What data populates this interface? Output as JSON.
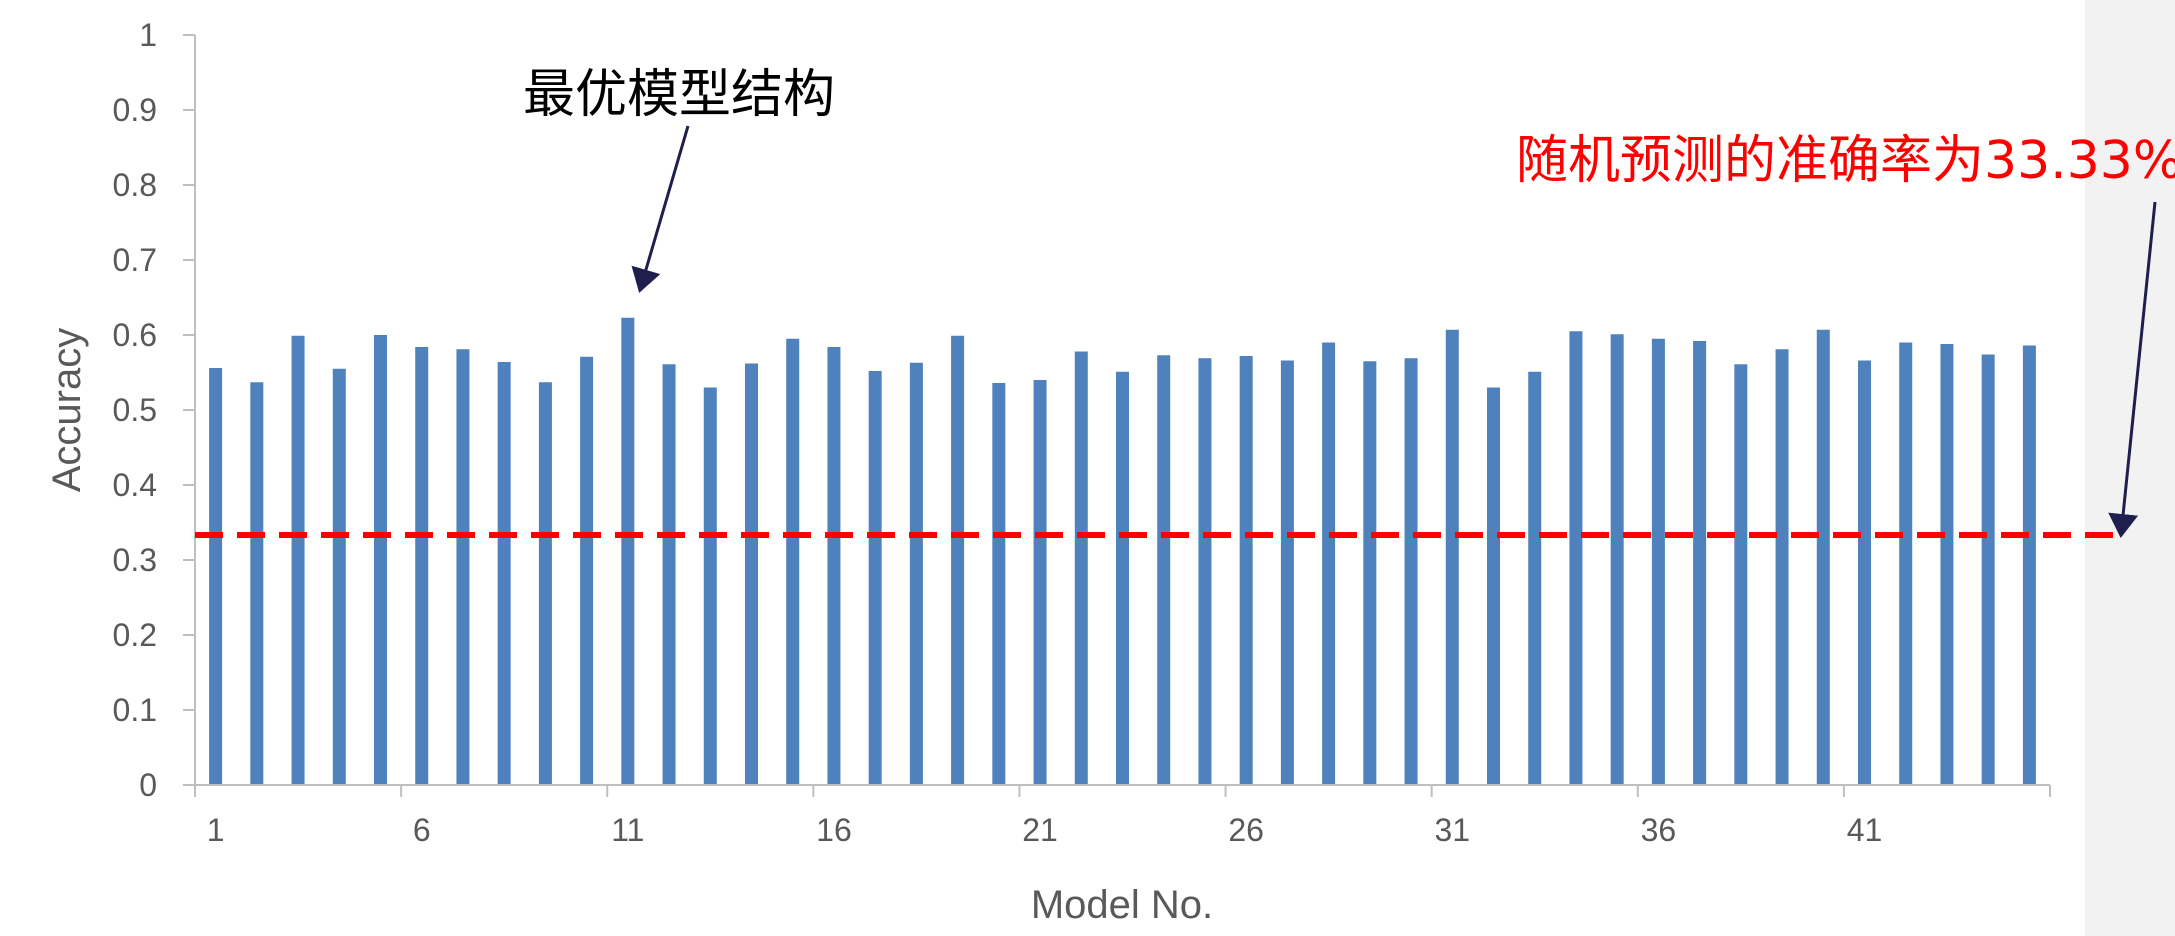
{
  "chart_data": {
    "type": "bar",
    "xlabel": "Model No.",
    "ylabel": "Accuracy",
    "ylim": [
      0,
      1
    ],
    "yticks": [
      0,
      0.1,
      0.2,
      0.3,
      0.4,
      0.5,
      0.6,
      0.7,
      0.8,
      0.9,
      1
    ],
    "ytick_labels": [
      "0",
      "0.1",
      "0.2",
      "0.3",
      "0.4",
      "0.5",
      "0.6",
      "0.7",
      "0.8",
      "0.9",
      "1"
    ],
    "xtick_labels": [
      "1",
      "6",
      "11",
      "16",
      "21",
      "26",
      "31",
      "36",
      "41"
    ],
    "categories": [
      1,
      2,
      3,
      4,
      5,
      6,
      7,
      8,
      9,
      10,
      11,
      12,
      13,
      14,
      15,
      16,
      17,
      18,
      19,
      20,
      21,
      22,
      23,
      24,
      25,
      26,
      27,
      28,
      29,
      30,
      31,
      32,
      33,
      34,
      35,
      36,
      37,
      38,
      39,
      40,
      41,
      42,
      43,
      44,
      45
    ],
    "values": [
      0.556,
      0.537,
      0.599,
      0.555,
      0.6,
      0.584,
      0.581,
      0.564,
      0.537,
      0.571,
      0.623,
      0.561,
      0.53,
      0.562,
      0.595,
      0.584,
      0.552,
      0.563,
      0.599,
      0.536,
      0.54,
      0.578,
      0.551,
      0.573,
      0.569,
      0.572,
      0.566,
      0.59,
      0.565,
      0.569,
      0.607,
      0.53,
      0.551,
      0.605,
      0.601,
      0.595,
      0.592,
      0.561,
      0.581,
      0.607,
      0.566,
      0.59,
      0.588,
      0.574,
      0.586
    ],
    "bar_color": "#4f81bd",
    "baseline": {
      "value": 0.3333,
      "color": "#ff0000",
      "style": "dashed",
      "label": "随机预测的准确率为33.33%"
    },
    "annotations": [
      {
        "text": "最优模型结构",
        "color": "#000000",
        "points_to_model": 11
      }
    ],
    "grid": false,
    "legend": "none"
  }
}
